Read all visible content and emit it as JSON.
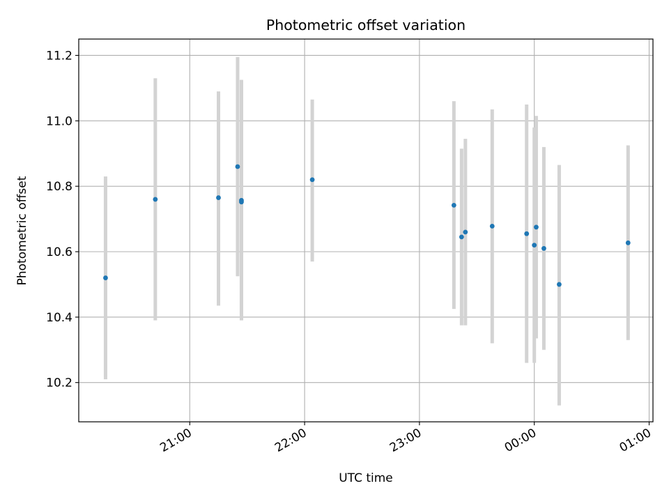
{
  "chart_data": {
    "type": "scatter",
    "title": "Photometric offset variation",
    "xlabel": "UTC time",
    "ylabel": "Photometric offset",
    "x_axis_kind": "time",
    "xlim": [
      "20:02",
      "01:02"
    ],
    "ylim": [
      10.08,
      11.25
    ],
    "grid": true,
    "xticks": [
      {
        "time": "21:00",
        "label": "21:00"
      },
      {
        "time": "22:00",
        "label": "22:00"
      },
      {
        "time": "23:00",
        "label": "23:00"
      },
      {
        "time": "00:00",
        "label": "00:00"
      },
      {
        "time": "01:00",
        "label": "01:00"
      }
    ],
    "yticks": [
      {
        "value": 10.2,
        "label": "10.2"
      },
      {
        "value": 10.4,
        "label": "10.4"
      },
      {
        "value": 10.6,
        "label": "10.6"
      },
      {
        "value": 10.8,
        "label": "10.8"
      },
      {
        "value": 11.0,
        "label": "11.0"
      },
      {
        "value": 11.2,
        "label": "11.2"
      }
    ],
    "colors": {
      "marker": "#1f77b4",
      "errorbar": "#d3d3d3",
      "grid": "#b0b0b0",
      "axes": "#000000"
    },
    "points": [
      {
        "x": "20:16",
        "y": 10.52,
        "ymin": 10.21,
        "ymax": 10.83
      },
      {
        "x": "20:42",
        "y": 10.76,
        "ymin": 10.39,
        "ymax": 11.13
      },
      {
        "x": "21:15",
        "y": 10.765,
        "ymin": 10.435,
        "ymax": 11.09
      },
      {
        "x": "21:25",
        "y": 10.86,
        "ymin": 10.525,
        "ymax": 11.195
      },
      {
        "x": "21:27",
        "y": 10.757,
        "ymin": 10.39,
        "ymax": 11.125
      },
      {
        "x": "21:27",
        "y": 10.752,
        "ymin": 10.39,
        "ymax": 11.125
      },
      {
        "x": "22:04",
        "y": 10.82,
        "ymin": 10.57,
        "ymax": 11.065
      },
      {
        "x": "23:18",
        "y": 10.742,
        "ymin": 10.425,
        "ymax": 11.06
      },
      {
        "x": "23:22",
        "y": 10.645,
        "ymin": 10.375,
        "ymax": 10.915
      },
      {
        "x": "23:24",
        "y": 10.66,
        "ymin": 10.375,
        "ymax": 10.945
      },
      {
        "x": "23:38",
        "y": 10.678,
        "ymin": 10.32,
        "ymax": 11.035
      },
      {
        "x": "23:56",
        "y": 10.655,
        "ymin": 10.26,
        "ymax": 11.05
      },
      {
        "x": "00:00",
        "y": 10.62,
        "ymin": 10.26,
        "ymax": 10.98
      },
      {
        "x": "00:01",
        "y": 10.675,
        "ymin": 10.335,
        "ymax": 11.015
      },
      {
        "x": "00:05",
        "y": 10.61,
        "ymin": 10.3,
        "ymax": 10.92
      },
      {
        "x": "00:13",
        "y": 10.5,
        "ymin": 10.13,
        "ymax": 10.865
      },
      {
        "x": "00:49",
        "y": 10.627,
        "ymin": 10.33,
        "ymax": 10.925
      }
    ]
  }
}
